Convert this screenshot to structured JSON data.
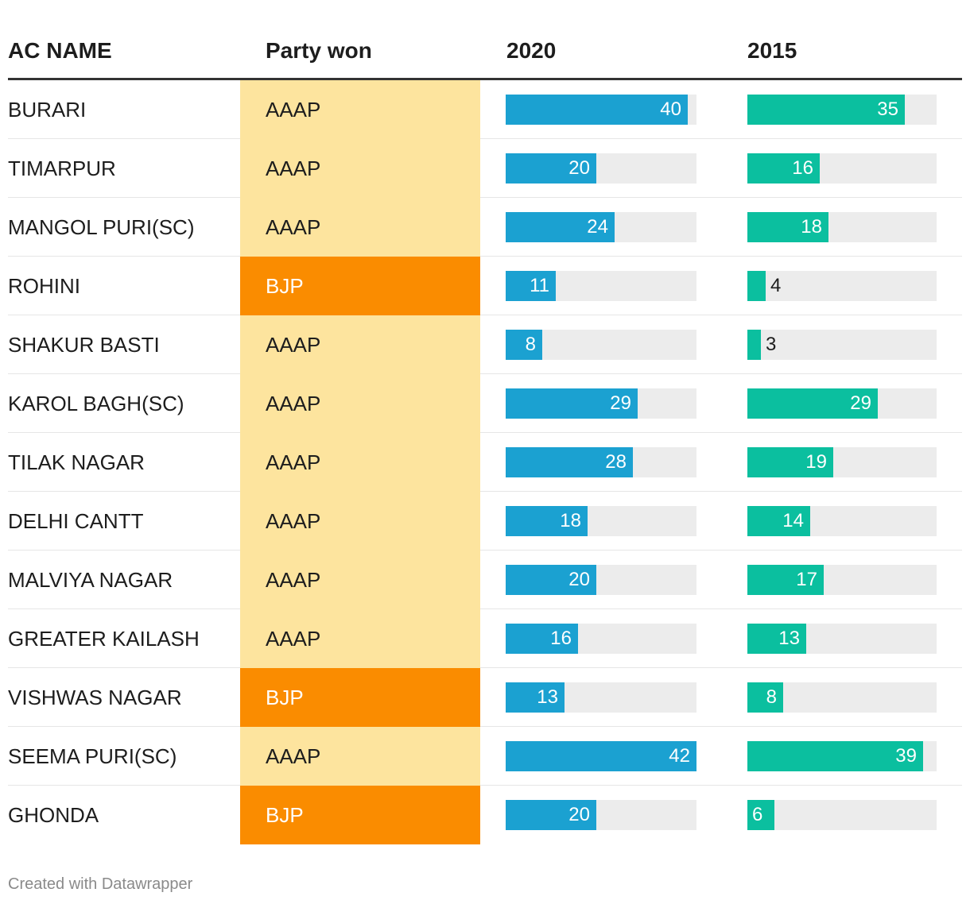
{
  "chart_data": {
    "type": "table",
    "columns": [
      "AC NAME",
      "Party won",
      "2020",
      "2015"
    ],
    "bar_max": 42,
    "colors": {
      "bar_2020": "#1ba1d1",
      "bar_2015": "#0bbf9f",
      "track": "#ececec",
      "AAAP": "#fde49e",
      "BJP": "#fa8c00"
    },
    "rows": [
      {
        "name": "BURARI",
        "party": "AAAP",
        "v2020": 40,
        "v2015": 35
      },
      {
        "name": "TIMARPUR",
        "party": "AAAP",
        "v2020": 20,
        "v2015": 16
      },
      {
        "name": "MANGOL PURI(SC)",
        "party": "AAAP",
        "v2020": 24,
        "v2015": 18
      },
      {
        "name": "ROHINI",
        "party": "BJP",
        "v2020": 11,
        "v2015": 4
      },
      {
        "name": "SHAKUR BASTI",
        "party": "AAAP",
        "v2020": 8,
        "v2015": 3
      },
      {
        "name": "KAROL BAGH(SC)",
        "party": "AAAP",
        "v2020": 29,
        "v2015": 29
      },
      {
        "name": "TILAK NAGAR",
        "party": "AAAP",
        "v2020": 28,
        "v2015": 19
      },
      {
        "name": "DELHI CANTT",
        "party": "AAAP",
        "v2020": 18,
        "v2015": 14
      },
      {
        "name": "MALVIYA NAGAR",
        "party": "AAAP",
        "v2020": 20,
        "v2015": 17
      },
      {
        "name": "GREATER KAILASH",
        "party": "AAAP",
        "v2020": 16,
        "v2015": 13
      },
      {
        "name": "VISHWAS NAGAR",
        "party": "BJP",
        "v2020": 13,
        "v2015": 8
      },
      {
        "name": "SEEMA PURI(SC)",
        "party": "AAAP",
        "v2020": 42,
        "v2015": 39
      },
      {
        "name": "GHONDA",
        "party": "BJP",
        "v2020": 20,
        "v2015": 6
      }
    ]
  },
  "footer": {
    "credit": "Created with Datawrapper"
  }
}
